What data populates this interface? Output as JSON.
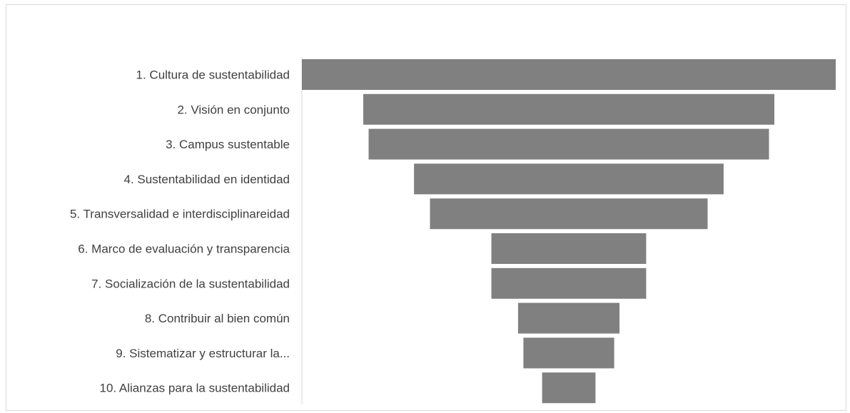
{
  "chart_data": {
    "type": "bar",
    "orientation": "funnel",
    "title": "",
    "xlabel": "",
    "ylabel": "",
    "bar_color": "#808080",
    "axis_color": "#d9d9d9",
    "label_color": "#404040",
    "grid": false,
    "legend": "none",
    "categories": [
      "1. Cultura de sustentabilidad",
      "2. Visión en conjunto",
      "3. Campus sustentable",
      "4. Sustentabilidad en identidad",
      "5. Transversalidad e interdisciplinareidad",
      "6. Marco de evaluación y transparencia",
      "7. Socialización de la sustentabilidad",
      "8. Contribuir al bien común",
      "9. Sistematizar y estructurar la...",
      "10. Alianzas para la sustentabilidad"
    ],
    "values": [
      100,
      77,
      75,
      58,
      52,
      29,
      29,
      19,
      17,
      10
    ]
  }
}
